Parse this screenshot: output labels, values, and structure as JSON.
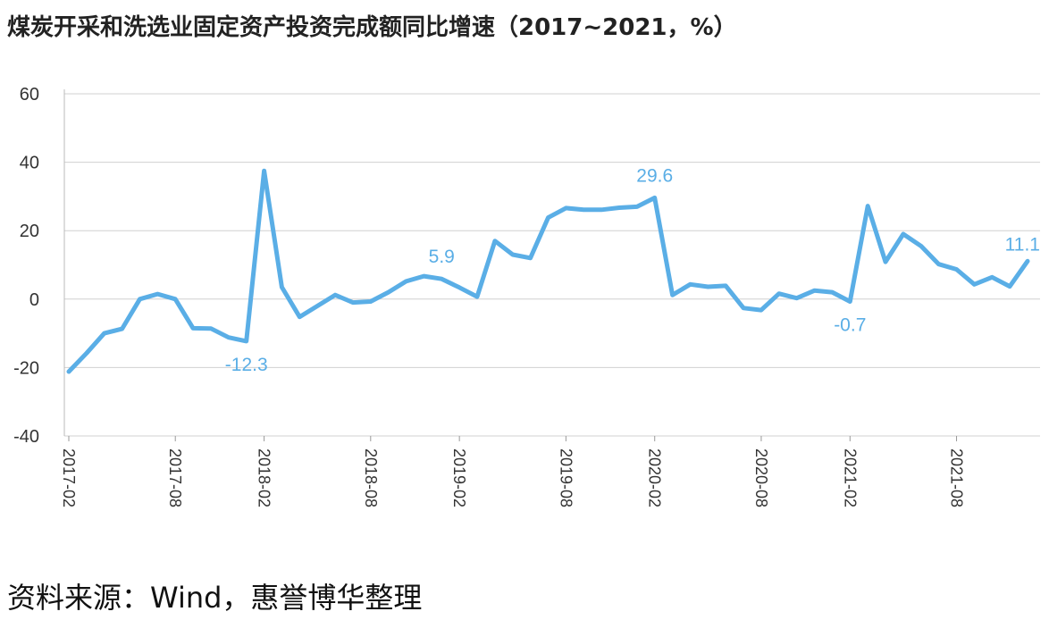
{
  "title": "煤炭开采和洗选业固定资产投资完成额同比增速（2017~2021，%）",
  "source": "资料来源：Wind，惠誉博华整理",
  "colors": {
    "line": "#5aaee6",
    "grid": "#d0d0d0",
    "axis": "#333333"
  },
  "chart_data": {
    "type": "line",
    "title": "煤炭开采和洗选业固定资产投资完成额同比增速（2017~2021，%）",
    "xlabel": "",
    "ylabel": "",
    "ylim": [
      -40,
      60
    ],
    "yticks": [
      -40,
      -20,
      0,
      20,
      40,
      60
    ],
    "grid": true,
    "legend": "none",
    "xticks": [
      "2017-02",
      "2017-08",
      "2018-02",
      "2018-08",
      "2019-02",
      "2019-08",
      "2020-02",
      "2020-08",
      "2021-02",
      "2021-08"
    ],
    "x": [
      "2017-02",
      "2017-03",
      "2017-04",
      "2017-05",
      "2017-06",
      "2017-07",
      "2017-08",
      "2017-09",
      "2017-10",
      "2017-11",
      "2017-12",
      "2018-02",
      "2018-03",
      "2018-04",
      "2018-05",
      "2018-06",
      "2018-07",
      "2018-08",
      "2018-09",
      "2018-10",
      "2018-11",
      "2018-12",
      "2019-02",
      "2019-03",
      "2019-04",
      "2019-05",
      "2019-06",
      "2019-07",
      "2019-08",
      "2019-09",
      "2019-10",
      "2019-11",
      "2019-12",
      "2020-02",
      "2020-03",
      "2020-04",
      "2020-05",
      "2020-06",
      "2020-07",
      "2020-08",
      "2020-09",
      "2020-10",
      "2020-11",
      "2020-12",
      "2021-02",
      "2021-03",
      "2021-04",
      "2021-05",
      "2021-06",
      "2021-07",
      "2021-08",
      "2021-09",
      "2021-10",
      "2021-11",
      "2021-12"
    ],
    "series": [
      {
        "name": "",
        "values": [
          -21.2,
          -15.8,
          -10.0,
          -8.7,
          0.0,
          1.5,
          0.0,
          -8.5,
          -8.6,
          -11.2,
          -12.3,
          37.5,
          3.5,
          -5.2,
          -2.0,
          1.2,
          -1.0,
          -0.7,
          2.0,
          5.2,
          6.7,
          5.9,
          3.4,
          0.7,
          17.0,
          13.0,
          12.0,
          23.8,
          26.6,
          26.1,
          26.1,
          26.7,
          27.0,
          29.6,
          1.2,
          4.3,
          3.6,
          3.9,
          -2.6,
          -3.2,
          1.6,
          0.3,
          2.5,
          2.0,
          -0.7,
          27.2,
          10.9,
          19.0,
          15.5,
          10.2,
          8.7,
          4.3,
          6.4,
          3.7,
          11.1
        ]
      }
    ],
    "annotations": [
      {
        "x": "2017-12",
        "label": "-12.3"
      },
      {
        "x": "2018-12",
        "label": "5.9"
      },
      {
        "x": "2020-02",
        "label": "29.6"
      },
      {
        "x": "2021-02",
        "label": "-0.7"
      },
      {
        "x": "2021-12",
        "label": "11.1"
      }
    ]
  }
}
